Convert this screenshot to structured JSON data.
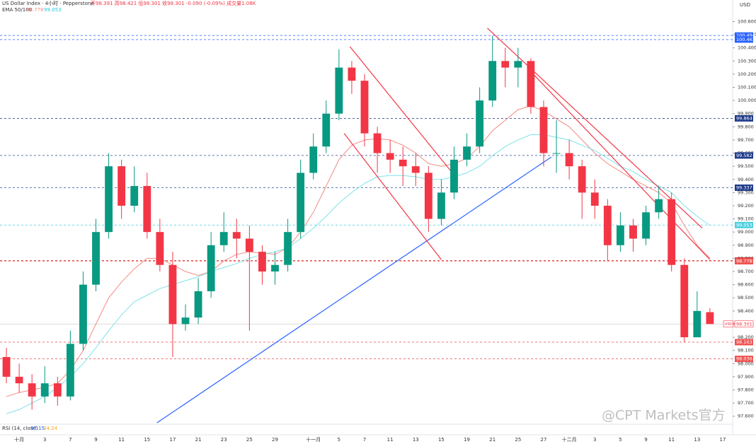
{
  "chart_data": {
    "type": "candlestick",
    "title": "US Dollar Index · 4小时 · Pepperstone",
    "ohlc_text": "开98.391 高98.421 低98.301 收98.301 -0.090 (-0.09%) 成交量1.08K",
    "currency": "USD",
    "categories": [
      null,
      "十月",
      null,
      "3",
      null,
      "7",
      null,
      "9",
      null,
      "11",
      null,
      "15",
      null,
      "17",
      null,
      "21",
      null,
      "23",
      null,
      "25",
      null,
      "29",
      null,
      null,
      "十一月",
      null,
      "5",
      null,
      "7",
      null,
      "11",
      null,
      "13",
      null,
      "15",
      null,
      "19",
      null,
      "21",
      null,
      "25",
      null,
      "27",
      null,
      "十二月",
      null,
      "3",
      null,
      "5",
      null,
      "9",
      null,
      "11",
      null,
      "13",
      null,
      "17"
    ],
    "up_color": "#089981",
    "down_color": "#f23645",
    "open": [
      98.05,
      97.9,
      97.85,
      97.75,
      97.85,
      97.75,
      98.15,
      98.6,
      99.0,
      99.5,
      99.2,
      99.35,
      99.0,
      98.75,
      98.3,
      98.35,
      98.55,
      98.9,
      99.0,
      98.95,
      98.85,
      98.7,
      98.75,
      99.0,
      99.45,
      99.65,
      99.9,
      100.25,
      100.15,
      99.75,
      99.6,
      99.55,
      99.5,
      99.45,
      99.1,
      99.3,
      99.55,
      99.65,
      100.0,
      100.3,
      100.25,
      100.3,
      99.95,
      99.6,
      99.6,
      99.5,
      99.3,
      99.2,
      98.9,
      99.05,
      98.95,
      99.15,
      99.25,
      98.75,
      98.2,
      98.391,
      null
    ],
    "high": [
      98.12,
      98.0,
      97.92,
      97.98,
      97.9,
      98.25,
      98.7,
      99.1,
      99.6,
      99.55,
      99.5,
      99.45,
      99.1,
      98.85,
      98.45,
      98.65,
      99.0,
      99.15,
      99.1,
      99.05,
      98.9,
      98.85,
      99.1,
      99.55,
      99.75,
      100.0,
      100.39,
      100.3,
      100.2,
      99.8,
      99.7,
      99.65,
      99.6,
      99.5,
      99.4,
      99.65,
      99.75,
      100.1,
      100.49,
      100.4,
      100.4,
      100.32,
      100.0,
      99.85,
      99.7,
      99.55,
      99.4,
      99.25,
      99.15,
      99.1,
      99.2,
      99.35,
      99.3,
      98.8,
      98.55,
      98.421,
      null
    ],
    "low": [
      97.85,
      97.78,
      97.65,
      97.7,
      97.68,
      97.72,
      98.1,
      98.55,
      98.95,
      99.1,
      99.15,
      98.95,
      98.7,
      98.05,
      98.25,
      98.3,
      98.5,
      98.85,
      98.8,
      98.25,
      98.6,
      98.6,
      98.7,
      98.95,
      99.4,
      99.6,
      99.85,
      100.05,
      99.65,
      99.45,
      99.45,
      99.35,
      99.35,
      99.0,
      99.05,
      99.25,
      99.5,
      99.6,
      99.95,
      100.1,
      100.1,
      99.9,
      99.5,
      99.45,
      99.4,
      99.1,
      99.1,
      98.78,
      98.85,
      98.85,
      98.9,
      99.1,
      98.7,
      98.163,
      98.2,
      98.301,
      null
    ],
    "close": [
      97.9,
      97.85,
      97.75,
      97.85,
      97.75,
      98.15,
      98.6,
      99.0,
      99.5,
      99.2,
      99.35,
      99.0,
      98.75,
      98.3,
      98.35,
      98.55,
      98.9,
      99.0,
      98.95,
      98.85,
      98.7,
      98.75,
      99.0,
      99.45,
      99.65,
      99.9,
      100.25,
      100.15,
      99.75,
      99.6,
      99.55,
      99.5,
      99.45,
      99.1,
      99.3,
      99.55,
      99.65,
      100.0,
      100.3,
      100.25,
      100.3,
      99.95,
      99.6,
      99.6,
      99.5,
      99.3,
      99.2,
      98.9,
      99.05,
      98.95,
      99.15,
      99.25,
      98.75,
      98.2,
      98.4,
      98.301,
      null
    ],
    "indicator": {
      "label": "EMA 50/100",
      "lines": [
        {
          "color": "#f28b82",
          "last_label": "98.778",
          "values": [
            97.75,
            97.78,
            97.8,
            97.82,
            97.85,
            97.95,
            98.1,
            98.3,
            98.5,
            98.62,
            98.72,
            98.8,
            98.8,
            98.75,
            98.7,
            98.67,
            98.7,
            98.78,
            98.83,
            98.85,
            98.84,
            98.83,
            98.88,
            99.0,
            99.15,
            99.35,
            99.55,
            99.66,
            99.7,
            99.71,
            99.7,
            99.66,
            99.6,
            99.52,
            99.5,
            99.52,
            99.56,
            99.65,
            99.77,
            99.85,
            99.93,
            99.96,
            99.92,
            99.86,
            99.8,
            99.7,
            99.6,
            99.52,
            99.46,
            99.4,
            99.35,
            99.3,
            99.22,
            99.05,
            98.9,
            98.8,
            null
          ]
        },
        {
          "color": "#7fe3ea",
          "last_label": "99.053",
          "values": [
            97.62,
            97.65,
            97.7,
            97.75,
            97.82,
            97.9,
            98.0,
            98.12,
            98.25,
            98.37,
            98.47,
            98.52,
            98.57,
            98.6,
            98.63,
            98.66,
            98.7,
            98.73,
            98.76,
            98.8,
            98.83,
            98.85,
            98.88,
            98.95,
            99.03,
            99.12,
            99.22,
            99.3,
            99.37,
            99.42,
            99.43,
            99.43,
            99.42,
            99.4,
            99.4,
            99.42,
            99.45,
            99.5,
            99.58,
            99.65,
            99.7,
            99.74,
            99.74,
            99.72,
            99.7,
            99.66,
            99.62,
            99.56,
            99.5,
            99.46,
            99.4,
            99.35,
            99.3,
            99.2,
            99.12,
            99.05,
            null
          ]
        }
      ]
    },
    "rsi": {
      "label": "RSI (14, close)",
      "values": [
        "37.15",
        "34.24"
      ]
    },
    "watermark": "@CPT Markets官方",
    "ylim": [
      97.55,
      100.71
    ],
    "yticks": [
      {
        "value": 97.6,
        "label": "97.600"
      },
      {
        "value": 97.7,
        "label": "97.700"
      },
      {
        "value": 97.8,
        "label": "97.800"
      },
      {
        "value": 97.9,
        "label": "97.900"
      },
      {
        "value": 98.0,
        "label": "98.000"
      },
      {
        "value": 98.1,
        "label": "98.100"
      },
      {
        "value": 98.2,
        "label": "98.200"
      },
      {
        "value": 98.3,
        "label": "98.300"
      },
      {
        "value": 98.4,
        "label": "98.400"
      },
      {
        "value": 98.5,
        "label": "98.500"
      },
      {
        "value": 98.6,
        "label": "98.600"
      },
      {
        "value": 98.7,
        "label": "98.700"
      },
      {
        "value": 98.8,
        "label": "98.800"
      },
      {
        "value": 98.9,
        "label": "98.900"
      },
      {
        "value": 99.0,
        "label": "99.000"
      },
      {
        "value": 99.1,
        "label": "99.100"
      },
      {
        "value": 99.2,
        "label": "99.200"
      },
      {
        "value": 99.3,
        "label": "99.300"
      },
      {
        "value": 99.4,
        "label": "99.400"
      },
      {
        "value": 99.5,
        "label": "99.500"
      },
      {
        "value": 99.6,
        "label": "99.600"
      },
      {
        "value": 99.7,
        "label": "99.700"
      },
      {
        "value": 99.8,
        "label": "99.800"
      },
      {
        "value": 99.9,
        "label": "99.900"
      },
      {
        "value": 100.0,
        "label": "100.000"
      },
      {
        "value": 100.1,
        "label": "100.100"
      },
      {
        "value": 100.2,
        "label": "100.200"
      },
      {
        "value": 100.3,
        "label": "100.300"
      },
      {
        "value": 100.4,
        "label": "100.400"
      },
      {
        "value": 100.5,
        "label": "100.500"
      },
      {
        "value": 100.6,
        "label": "100.600"
      }
    ],
    "price_lines": [
      {
        "value": 100.494,
        "label": "100.494",
        "color": "#2962ff"
      },
      {
        "value": 100.463,
        "label": "100.463",
        "color": "#2962ff"
      },
      {
        "value": 99.864,
        "label": "99.864",
        "color": "#1e3a8a"
      },
      {
        "value": 99.582,
        "label": "99.582",
        "color": "#1e3a8a"
      },
      {
        "value": 99.337,
        "label": "99.337",
        "color": "#1e3a8a"
      },
      {
        "value": 99.053,
        "label": "99.053",
        "color": "#4dd0e1"
      },
      {
        "value": 98.783,
        "label": "98.783",
        "color": "#d32f2f"
      },
      {
        "value": 98.778,
        "label": "98.778",
        "color": "#ef5350"
      },
      {
        "value": 98.301,
        "label": "98.301",
        "color": "#bbbbbb",
        "tag": "USDX"
      },
      {
        "value": 98.163,
        "label": "98.163",
        "color": "#ef5350"
      },
      {
        "value": 98.036,
        "label": "98.036",
        "color": "#ef5350"
      }
    ],
    "trendlines": [
      {
        "color": "#2962ff",
        "points": [
          [
            11.77,
            97.55
          ],
          [
            42.6,
            99.57
          ]
        ]
      },
      {
        "color": "#f23645",
        "points": [
          [
            26.85,
            100.41
          ],
          [
            34.86,
            99.45
          ]
        ]
      },
      {
        "color": "#f23645",
        "points": [
          [
            26.4,
            99.75
          ],
          [
            34.0,
            98.79
          ]
        ]
      },
      {
        "color": "#f23645",
        "points": [
          [
            37.6,
            100.55
          ],
          [
            54.4,
            99.03
          ]
        ]
      },
      {
        "color": "#f23645",
        "points": [
          [
            40.7,
            100.25
          ],
          [
            55.0,
            98.79
          ]
        ]
      }
    ]
  }
}
